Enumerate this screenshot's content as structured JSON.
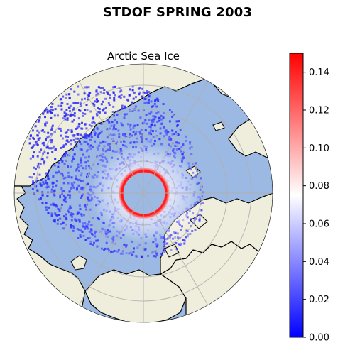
{
  "title": "STDOF SPRING 2003",
  "subtitle": "Arctic Sea Ice",
  "colors": {
    "ocean": "#9bb9e2",
    "land": "#efeedd",
    "coast": "#000000",
    "grid": "#b0b0b0",
    "cmap_low": "#0000ff",
    "cmap_mid": "#ffffff",
    "cmap_high": "#ff0000"
  },
  "colorbar": {
    "cmap": "bwr",
    "min": 0.0,
    "max": 0.15,
    "ticks": [
      "0.00",
      "0.02",
      "0.04",
      "0.06",
      "0.08",
      "0.10",
      "0.12",
      "0.14"
    ]
  }
}
